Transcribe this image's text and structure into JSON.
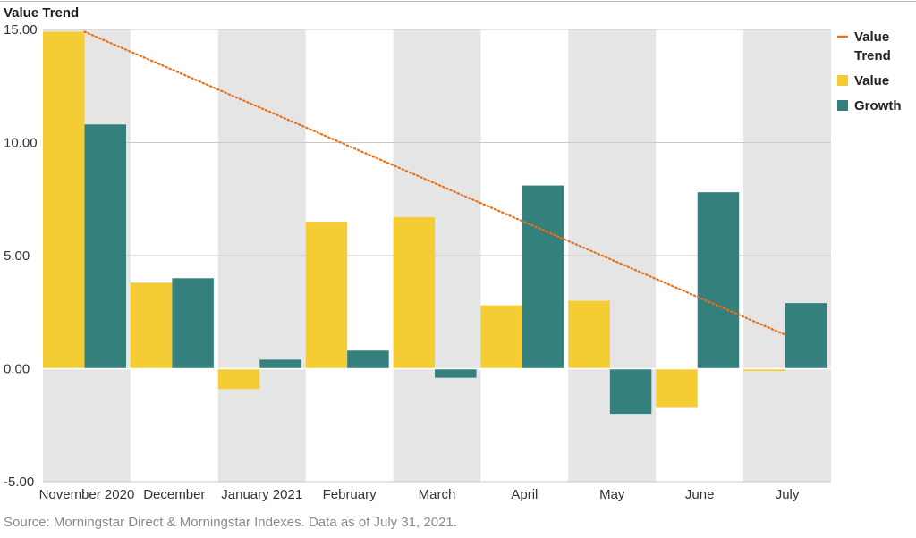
{
  "chart_data": {
    "type": "bar",
    "title": "Value Trend",
    "categories": [
      "November 2020",
      "December",
      "January 2021",
      "February",
      "March",
      "April",
      "May",
      "June",
      "July"
    ],
    "series": [
      {
        "name": "Value",
        "type": "bar",
        "color": "#f4cd35",
        "values": [
          14.9,
          3.8,
          -0.9,
          6.5,
          6.7,
          2.8,
          3.0,
          -1.7,
          -0.1
        ]
      },
      {
        "name": "Growth",
        "type": "bar",
        "color": "#33807d",
        "values": [
          10.8,
          4.0,
          0.4,
          0.8,
          -0.4,
          8.1,
          -2.0,
          7.8,
          2.9
        ]
      },
      {
        "name": "Value Trend",
        "type": "line",
        "style": "dotted",
        "color": "#e8701a",
        "values": [
          14.9,
          null,
          null,
          null,
          null,
          null,
          null,
          null,
          1.5
        ]
      }
    ],
    "yticks": [
      "15.00",
      "10.00",
      "5.00",
      "0.00",
      "-5.00"
    ],
    "ylim": [
      -5,
      15
    ],
    "legend_position": "right",
    "legend": [
      {
        "label_lines": [
          "Value",
          "Trend"
        ],
        "kind": "line",
        "color": "#e8701a"
      },
      {
        "label_lines": [
          "Value"
        ],
        "kind": "swatch",
        "color": "#f4cd35"
      },
      {
        "label_lines": [
          "Growth"
        ],
        "kind": "swatch",
        "color": "#33807d"
      }
    ],
    "band_color": "#e5e5e5",
    "grid": true
  },
  "footer": {
    "source": "Source: Morningstar Direct & Morningstar Indexes. Data as of July 31, 2021."
  }
}
